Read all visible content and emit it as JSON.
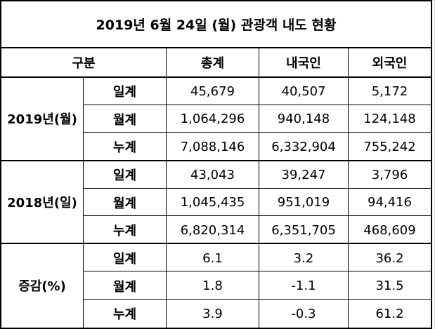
{
  "title": "2019년 6월 24일 (월) 관광객 내도 현황",
  "header": {
    "category": "구분",
    "total": "총계",
    "domestic": "내국인",
    "foreign": "외국인"
  },
  "groups": [
    {
      "label": "2019년(월)",
      "rows": [
        {
          "label": "일계",
          "total": "45,679",
          "domestic": "40,507",
          "foreign": "5,172"
        },
        {
          "label": "월계",
          "total": "1,064,296",
          "domestic": "940,148",
          "foreign": "124,148"
        },
        {
          "label": "누계",
          "total": "7,088,146",
          "domestic": "6,332,904",
          "foreign": "755,242"
        }
      ]
    },
    {
      "label": "2018년(일)",
      "rows": [
        {
          "label": "일계",
          "total": "43,043",
          "domestic": "39,247",
          "foreign": "3,796"
        },
        {
          "label": "월계",
          "total": "1,045,435",
          "domestic": "951,019",
          "foreign": "94,416"
        },
        {
          "label": "누계",
          "total": "6,820,314",
          "domestic": "6,351,705",
          "foreign": "468,609"
        }
      ]
    },
    {
      "label": "증감(%)",
      "rows": [
        {
          "label": "일계",
          "total": "6.1",
          "domestic": "3.2",
          "foreign": "36.2"
        },
        {
          "label": "월계",
          "total": "1.8",
          "domestic": "-1.1",
          "foreign": "31.5"
        },
        {
          "label": "누계",
          "total": "3.9",
          "domestic": "-0.3",
          "foreign": "61.2"
        }
      ]
    }
  ]
}
